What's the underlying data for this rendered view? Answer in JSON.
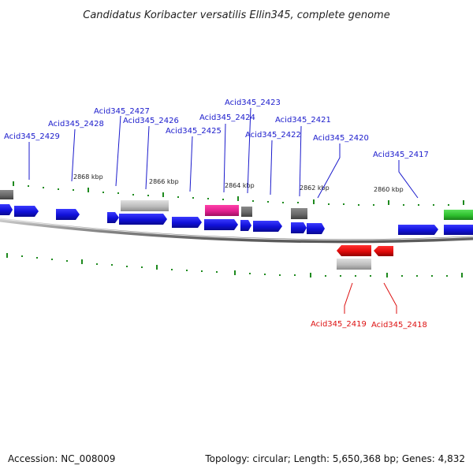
{
  "title": "Candidatus Koribacter versatilis Ellin345, complete genome",
  "footer": {
    "accession": "Accession: NC_008009",
    "summary": "Topology: circular; Length: 5,650,368 bp; Genes: 4,832"
  },
  "colors": {
    "plus_label": "#1a1acc",
    "minus_label": "#dd1111",
    "gene_blue": "#1a1ae0",
    "gene_red": "#e01010",
    "gene_pink": "#e0208f",
    "gene_green": "#2ec02e",
    "gene_gray": "#bdbdbd",
    "gene_darkgray": "#6e6e6e",
    "tick_green": "#1e8a1e",
    "backbone": "#8a8a8a"
  },
  "kbp_labels": [
    "2868 kbp",
    "2866 kbp",
    "2864 kbp",
    "2862 kbp",
    "2860 kbp"
  ],
  "gene_labels": {
    "plus": [
      "Acid345_2429",
      "Acid345_2428",
      "Acid345_2427",
      "Acid345_2426",
      "Acid345_2425",
      "Acid345_2424",
      "Acid345_2423",
      "Acid345_2422",
      "Acid345_2421",
      "Acid345_2420",
      "Acid345_2417"
    ],
    "minus": [
      "Acid345_2419",
      "Acid345_2418"
    ]
  }
}
